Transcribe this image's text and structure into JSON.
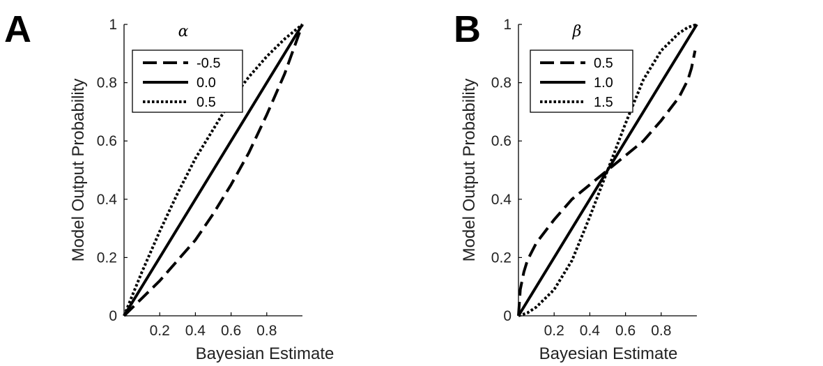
{
  "chart_data": [
    {
      "panel_label": "A",
      "type": "line",
      "title": "",
      "xlabel": "Bayesian Estimate",
      "ylabel": "Model Output Probability",
      "xlim": [
        0,
        1
      ],
      "ylim": [
        0,
        1
      ],
      "xticks": [
        0.2,
        0.4,
        0.6,
        0.8
      ],
      "xtick_labels": [
        "0.2",
        "0.4",
        "0.6",
        "0.8"
      ],
      "yticks": [
        0,
        0.2,
        0.4,
        0.6,
        0.8,
        1
      ],
      "ytick_labels": [
        "0",
        "0.2",
        "0.4",
        "0.6",
        "0.8",
        "1"
      ],
      "grid": false,
      "legend": {
        "title": "α",
        "placement": "top-left"
      },
      "series": [
        {
          "name": "-0.5",
          "style": "dashed",
          "x": [
            0,
            0.1,
            0.2,
            0.3,
            0.4,
            0.5,
            0.6,
            0.7,
            0.8,
            0.9,
            1.0
          ],
          "y": [
            0,
            0.06,
            0.12,
            0.19,
            0.26,
            0.35,
            0.45,
            0.56,
            0.69,
            0.83,
            1.0
          ]
        },
        {
          "name": "0.0",
          "style": "solid",
          "x": [
            0,
            0.1,
            0.2,
            0.3,
            0.4,
            0.5,
            0.6,
            0.7,
            0.8,
            0.9,
            1.0
          ],
          "y": [
            0,
            0.1,
            0.2,
            0.3,
            0.4,
            0.5,
            0.6,
            0.7,
            0.8,
            0.9,
            1.0
          ]
        },
        {
          "name": "0.5",
          "style": "dotted",
          "x": [
            0,
            0.1,
            0.2,
            0.3,
            0.4,
            0.5,
            0.6,
            0.7,
            0.8,
            0.9,
            1.0
          ],
          "y": [
            0,
            0.15,
            0.29,
            0.42,
            0.54,
            0.64,
            0.74,
            0.82,
            0.89,
            0.95,
            1.0
          ]
        }
      ]
    },
    {
      "panel_label": "B",
      "type": "line",
      "title": "",
      "xlabel": "Bayesian Estimate",
      "ylabel": "Model Output Probability",
      "xlim": [
        0,
        1
      ],
      "ylim": [
        0,
        1
      ],
      "xticks": [
        0.2,
        0.4,
        0.6,
        0.8
      ],
      "xtick_labels": [
        "0.2",
        "0.4",
        "0.6",
        "0.8"
      ],
      "yticks": [
        0,
        0.2,
        0.4,
        0.6,
        0.8,
        1
      ],
      "ytick_labels": [
        "0",
        "0.2",
        "0.4",
        "0.6",
        "0.8",
        "1"
      ],
      "grid": false,
      "legend": {
        "title": "β",
        "placement": "top-left"
      },
      "series": [
        {
          "name": "0.5",
          "style": "dashed",
          "x": [
            0,
            0.01,
            0.03,
            0.05,
            0.1,
            0.2,
            0.3,
            0.4,
            0.5,
            0.6,
            0.7,
            0.8,
            0.9,
            0.95,
            0.97,
            0.99
          ],
          "y": [
            0,
            0.09,
            0.15,
            0.19,
            0.25,
            0.33,
            0.4,
            0.45,
            0.5,
            0.55,
            0.6,
            0.67,
            0.75,
            0.81,
            0.85,
            0.91
          ]
        },
        {
          "name": "1.0",
          "style": "solid",
          "x": [
            0,
            0.1,
            0.2,
            0.3,
            0.4,
            0.5,
            0.6,
            0.7,
            0.8,
            0.9,
            1.0
          ],
          "y": [
            0,
            0.1,
            0.2,
            0.3,
            0.4,
            0.5,
            0.6,
            0.7,
            0.8,
            0.9,
            1.0
          ]
        },
        {
          "name": "1.5",
          "style": "dotted",
          "x": [
            0,
            0.05,
            0.1,
            0.2,
            0.3,
            0.4,
            0.5,
            0.6,
            0.7,
            0.8,
            0.9,
            0.95,
            1.0
          ],
          "y": [
            0,
            0.01,
            0.03,
            0.09,
            0.19,
            0.34,
            0.5,
            0.66,
            0.81,
            0.91,
            0.97,
            0.99,
            1.0
          ]
        }
      ]
    }
  ]
}
